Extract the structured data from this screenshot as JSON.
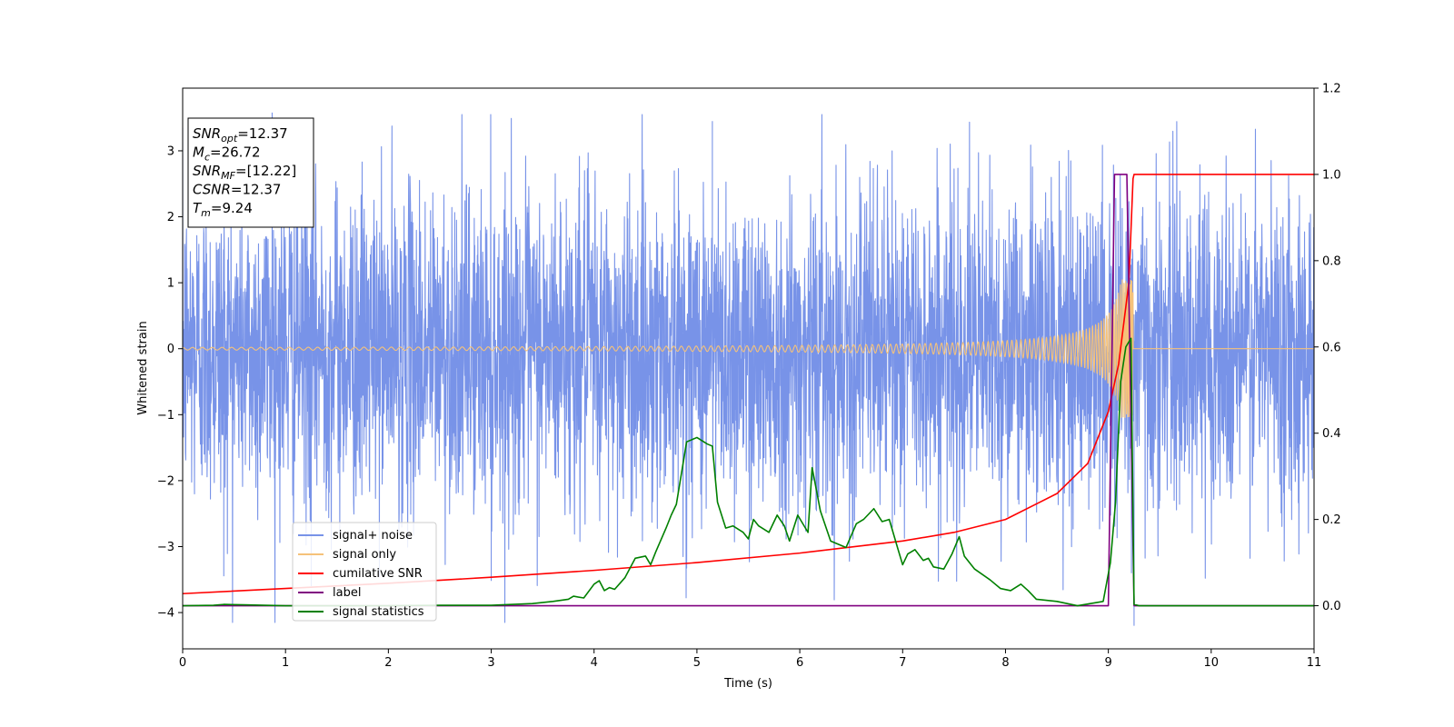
{
  "chart_data": {
    "type": "line",
    "xlabel": "Time (s)",
    "ylabel": "Whitened strain",
    "xlim": [
      0,
      11
    ],
    "ylim": [
      -4.55,
      3.95
    ],
    "y2lim": [
      -0.1,
      1.2
    ],
    "x_ticks": [
      "0",
      "1",
      "2",
      "3",
      "4",
      "5",
      "6",
      "7",
      "8",
      "9",
      "10",
      "11"
    ],
    "y_ticks": [
      "−4",
      "−3",
      "−2",
      "−1",
      "0",
      "1",
      "2",
      "3"
    ],
    "y2_ticks": [
      "0.0",
      "0.2",
      "0.4",
      "0.6",
      "0.8",
      "1.0",
      "1.2"
    ],
    "grid": false,
    "legend_position": "lower-left",
    "info_box": {
      "lines": [
        {
          "symbol": "SNR",
          "sub": "opt",
          "value": "=12.37"
        },
        {
          "symbol": "M",
          "sub": "c",
          "value": "=26.72"
        },
        {
          "symbol": "SNR",
          "sub": "MF",
          "value": "=[12.22]"
        },
        {
          "symbol": "CSNR",
          "sub": "",
          "value": "=12.37"
        },
        {
          "symbol": "T",
          "sub": "m",
          "value": "=9.24"
        }
      ]
    },
    "series": [
      {
        "name": "signal+ noise",
        "axis": "left",
        "color": "#7893e8",
        "description": "Gaussian noise + signal, approx. std 1.2, values spanning roughly -4.2 to 3.6 over 0-11 s",
        "noise_std": 1.2,
        "extremes": [
          [
            0.87,
            3.58
          ],
          [
            1.25,
            -3.6
          ],
          [
            3.0,
            -3.52
          ],
          [
            5.15,
            3.45
          ],
          [
            9.25,
            -4.2
          ],
          [
            0.4,
            -3.45
          ]
        ]
      },
      {
        "name": "signal only",
        "axis": "left",
        "color": "#f5c27a",
        "description": "chirp ending at 9.24 s, amplitude ~0.02 early rising to ~1.05 at merger",
        "merger_time": 9.24,
        "amplitude_start": 0.02,
        "amplitude_end": 1.05
      },
      {
        "name": "cumilative SNR",
        "axis": "right",
        "color": "#ff0000",
        "x": [
          0,
          1,
          2,
          3,
          4,
          5,
          6,
          7,
          7.5,
          8,
          8.5,
          8.8,
          9.0,
          9.1,
          9.2,
          9.24,
          9.25,
          11
        ],
        "y": [
          0.028,
          0.04,
          0.052,
          0.066,
          0.082,
          0.1,
          0.122,
          0.15,
          0.17,
          0.2,
          0.26,
          0.33,
          0.45,
          0.56,
          0.75,
          0.99,
          1.0,
          1.0
        ]
      },
      {
        "name": "label",
        "axis": "right",
        "color": "#800080",
        "x": [
          0,
          9.0,
          9.06,
          9.18,
          9.25,
          11
        ],
        "y": [
          0,
          0,
          1,
          1,
          0,
          0
        ]
      },
      {
        "name": "signal statistics",
        "axis": "right",
        "color": "#008000",
        "x": [
          0,
          0.3,
          0.4,
          0.6,
          1.0,
          2.0,
          2.5,
          3.0,
          3.4,
          3.6,
          3.75,
          3.8,
          3.9,
          4.0,
          4.05,
          4.1,
          4.15,
          4.2,
          4.3,
          4.4,
          4.5,
          4.55,
          4.6,
          4.7,
          4.75,
          4.8,
          4.9,
          5.0,
          5.1,
          5.15,
          5.2,
          5.28,
          5.35,
          5.45,
          5.5,
          5.55,
          5.6,
          5.7,
          5.78,
          5.85,
          5.9,
          5.98,
          6.08,
          6.12,
          6.2,
          6.3,
          6.45,
          6.55,
          6.62,
          6.72,
          6.8,
          6.87,
          6.95,
          7.0,
          7.05,
          7.12,
          7.2,
          7.25,
          7.3,
          7.4,
          7.48,
          7.55,
          7.6,
          7.7,
          7.85,
          7.95,
          8.05,
          8.15,
          8.22,
          8.3,
          8.5,
          8.7,
          8.95,
          9.02,
          9.07,
          9.12,
          9.17,
          9.22,
          9.25,
          9.3,
          11
        ],
        "y": [
          0,
          0.001,
          0.003,
          0.002,
          0.0,
          0.0,
          0.001,
          0.001,
          0.005,
          0.01,
          0.015,
          0.022,
          0.018,
          0.05,
          0.058,
          0.035,
          0.042,
          0.038,
          0.065,
          0.11,
          0.115,
          0.095,
          0.125,
          0.18,
          0.21,
          0.235,
          0.38,
          0.39,
          0.375,
          0.37,
          0.24,
          0.18,
          0.185,
          0.17,
          0.155,
          0.2,
          0.185,
          0.17,
          0.21,
          0.185,
          0.15,
          0.21,
          0.17,
          0.32,
          0.22,
          0.15,
          0.135,
          0.19,
          0.2,
          0.225,
          0.195,
          0.2,
          0.135,
          0.095,
          0.12,
          0.13,
          0.105,
          0.11,
          0.09,
          0.085,
          0.12,
          0.16,
          0.115,
          0.085,
          0.06,
          0.04,
          0.035,
          0.05,
          0.035,
          0.015,
          0.01,
          0.0,
          0.01,
          0.1,
          0.24,
          0.52,
          0.6,
          0.62,
          0.003,
          0.0,
          0.0
        ]
      }
    ]
  }
}
